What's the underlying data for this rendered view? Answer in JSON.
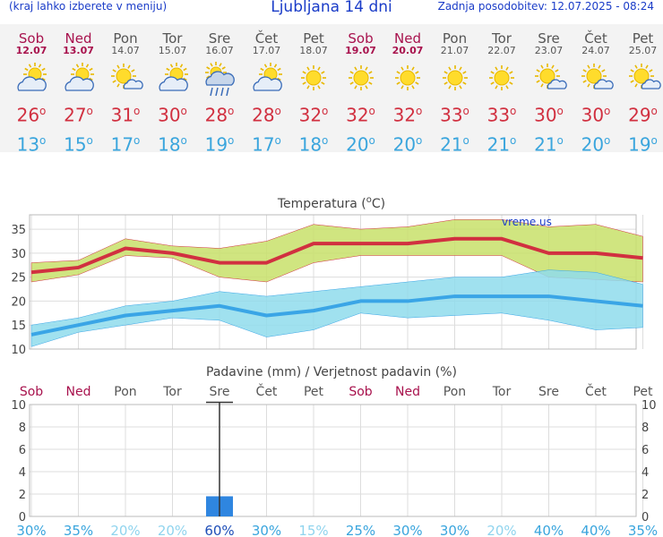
{
  "header": {
    "left_note": "(kraj lahko izberete v meniju)",
    "title": "Ljubljana 14 dni",
    "updated": "Zadnja posodobitev: 12.07.2025 - 08:24"
  },
  "days": [
    {
      "name": "Sob",
      "date": "12.07",
      "weekend": true,
      "icon": "partly-cloudy-icon",
      "tmax": "26",
      "tmin": "13"
    },
    {
      "name": "Ned",
      "date": "13.07",
      "weekend": true,
      "icon": "partly-cloudy-icon",
      "tmax": "27",
      "tmin": "15"
    },
    {
      "name": "Pon",
      "date": "14.07",
      "weekend": false,
      "icon": "sun-small-cloud-icon",
      "tmax": "31",
      "tmin": "17"
    },
    {
      "name": "Tor",
      "date": "15.07",
      "weekend": false,
      "icon": "partly-cloudy-icon",
      "tmax": "30",
      "tmin": "18"
    },
    {
      "name": "Sre",
      "date": "16.07",
      "weekend": false,
      "icon": "rain-shower-icon",
      "tmax": "28",
      "tmin": "19"
    },
    {
      "name": "Čet",
      "date": "17.07",
      "weekend": false,
      "icon": "partly-cloudy-icon",
      "tmax": "28",
      "tmin": "17"
    },
    {
      "name": "Pet",
      "date": "18.07",
      "weekend": false,
      "icon": "sunny-icon",
      "tmax": "32",
      "tmin": "18"
    },
    {
      "name": "Sob",
      "date": "19.07",
      "weekend": true,
      "icon": "sunny-icon",
      "tmax": "32",
      "tmin": "20"
    },
    {
      "name": "Ned",
      "date": "20.07",
      "weekend": true,
      "icon": "sunny-icon",
      "tmax": "32",
      "tmin": "20"
    },
    {
      "name": "Pon",
      "date": "21.07",
      "weekend": false,
      "icon": "sunny-icon",
      "tmax": "33",
      "tmin": "21"
    },
    {
      "name": "Tor",
      "date": "22.07",
      "weekend": false,
      "icon": "sunny-icon",
      "tmax": "33",
      "tmin": "21"
    },
    {
      "name": "Sre",
      "date": "23.07",
      "weekend": false,
      "icon": "sun-small-cloud-icon",
      "tmax": "30",
      "tmin": "21"
    },
    {
      "name": "Čet",
      "date": "24.07",
      "weekend": false,
      "icon": "sun-small-cloud-icon",
      "tmax": "30",
      "tmin": "20"
    },
    {
      "name": "Pet",
      "date": "25.07",
      "weekend": false,
      "icon": "sun-small-cloud-icon",
      "tmax": "29",
      "tmin": "19"
    }
  ],
  "degree_symbol": "o",
  "chart_data": [
    {
      "type": "area",
      "title": "Temperatura (°C)",
      "title_parts": {
        "pre": "Temperatura (",
        "sup": "o",
        "post": "C)"
      },
      "watermark": "vreme.us",
      "ylim": [
        10,
        38
      ],
      "yticks": [
        "10",
        "15",
        "20",
        "25",
        "30",
        "35"
      ],
      "x_points": 14,
      "series": [
        {
          "name": "Max",
          "values": [
            26,
            27,
            31,
            30,
            28,
            28,
            32,
            32,
            32,
            33,
            33,
            30,
            30,
            29
          ],
          "band_high": [
            28,
            28.5,
            33,
            31.5,
            31,
            32.5,
            36,
            35,
            35.5,
            37,
            37,
            35.5,
            36,
            33.5
          ],
          "band_low": [
            24,
            25.5,
            29.5,
            29,
            25,
            24,
            28,
            29.5,
            29.5,
            29.5,
            29.5,
            25,
            24.5,
            24
          ],
          "color": "#d13040",
          "band_color": "#c8e06a"
        },
        {
          "name": "Min",
          "values": [
            13,
            15,
            17,
            18,
            19,
            17,
            18,
            20,
            20,
            21,
            21,
            21,
            20,
            19
          ],
          "band_high": [
            15,
            16.5,
            19,
            20,
            22,
            21,
            22,
            23,
            24,
            25,
            25,
            26.5,
            26,
            23.5
          ],
          "band_low": [
            10.5,
            13.5,
            15,
            16.5,
            16,
            12.5,
            14,
            17.5,
            16.5,
            17,
            17.5,
            16,
            14,
            14.5
          ],
          "color": "#3aa5e6",
          "band_color": "#8fdcec"
        }
      ]
    },
    {
      "type": "bar",
      "title": "Padavine (mm) / Verjetnost padavin (%)",
      "categories": [
        "Sob",
        "Ned",
        "Pon",
        "Tor",
        "Sre",
        "Čet",
        "Pet",
        "Sob",
        "Ned",
        "Pon",
        "Tor",
        "Sre",
        "Čet",
        "Pet"
      ],
      "weekend": [
        true,
        true,
        false,
        false,
        false,
        false,
        false,
        true,
        true,
        false,
        false,
        false,
        false,
        false
      ],
      "values": [
        0,
        0,
        0,
        0,
        1.8,
        0,
        0,
        0,
        0,
        0,
        0,
        0,
        0,
        0
      ],
      "error_high": [
        null,
        null,
        null,
        null,
        10.2,
        null,
        null,
        null,
        null,
        null,
        null,
        null,
        null,
        null
      ],
      "probability": [
        "30%",
        "35%",
        "20%",
        "20%",
        "60%",
        "30%",
        "15%",
        "25%",
        "30%",
        "30%",
        "20%",
        "40%",
        "40%",
        "35%"
      ],
      "probability_values": [
        30,
        35,
        20,
        20,
        60,
        30,
        15,
        25,
        30,
        30,
        20,
        40,
        40,
        35
      ],
      "ylim": [
        0,
        10
      ],
      "yticks": [
        "0",
        "2",
        "4",
        "6",
        "8",
        "10"
      ],
      "bar_color": "#2f86e0"
    }
  ]
}
